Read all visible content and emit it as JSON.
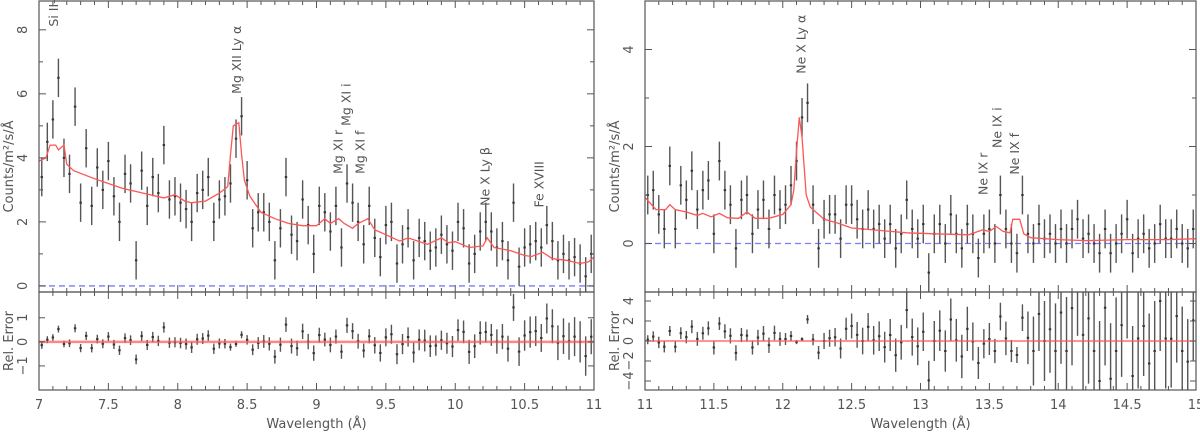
{
  "chart_data": [
    {
      "type": "line",
      "xlabel": "Wavelength (Å)",
      "ylabel": "Counts/m²/s/Å",
      "residual_ylabel": "Rel. Error",
      "xlim": [
        7,
        11
      ],
      "ylim": [
        -0.19,
        8.9
      ],
      "residual_ylim": [
        -2,
        2.07
      ],
      "xticks": [
        7,
        7.5,
        8,
        8.5,
        9,
        9.5,
        10,
        10.5,
        11
      ],
      "xtick_labels": [
        "7",
        "7.5",
        "8",
        "8.5",
        "9",
        "9.5",
        "10",
        "10.5",
        "11"
      ],
      "yticks": [
        0,
        2,
        4,
        6,
        8
      ],
      "ytick_labels": [
        "0",
        "2",
        "4",
        "6",
        "8"
      ],
      "residual_yticks": [
        -1,
        0,
        1
      ],
      "residual_ytick_labels": [
        "−1",
        "0",
        "1"
      ],
      "zero_line_color": "#7b7bff",
      "model_color": "#ff5555",
      "data_color": "#555555",
      "annotations": [
        {
          "text": "Si II–VI",
          "x": 7.1,
          "y": 8.1
        },
        {
          "text": "Mg XII Ly α",
          "x": 8.42,
          "y": 6.0
        },
        {
          "text": "Mg XI r",
          "x": 9.15,
          "y": 3.5
        },
        {
          "text": "Mg XI i",
          "x": 9.21,
          "y": 5.0
        },
        {
          "text": "Mg XI f",
          "x": 9.31,
          "y": 3.5
        },
        {
          "text": "Ne X Ly β",
          "x": 10.21,
          "y": 2.5
        },
        {
          "text": "Fe XVIII",
          "x": 10.6,
          "y": 2.45
        }
      ],
      "model": {
        "x": [
          7.0,
          7.05,
          7.08,
          7.12,
          7.14,
          7.18,
          7.2,
          7.25,
          7.4,
          7.5,
          7.6,
          7.7,
          7.8,
          7.9,
          7.98,
          8.05,
          8.1,
          8.2,
          8.3,
          8.36,
          8.38,
          8.4,
          8.44,
          8.46,
          8.48,
          8.52,
          8.6,
          8.7,
          8.8,
          8.9,
          9.0,
          9.06,
          9.1,
          9.16,
          9.2,
          9.26,
          9.3,
          9.37,
          9.42,
          9.5,
          9.6,
          9.66,
          9.8,
          9.9,
          9.95,
          10.0,
          10.1,
          10.2,
          10.23,
          10.28,
          10.4,
          10.5,
          10.55,
          10.63,
          10.7,
          10.8,
          10.9,
          10.96,
          11.0
        ],
        "y": [
          3.9,
          4.0,
          4.4,
          4.4,
          4.25,
          4.4,
          3.8,
          3.6,
          3.35,
          3.2,
          3.05,
          2.95,
          2.85,
          2.75,
          2.85,
          2.65,
          2.6,
          2.65,
          2.9,
          3.1,
          4.1,
          5.0,
          5.1,
          4.1,
          3.3,
          2.8,
          2.3,
          2.1,
          1.95,
          1.88,
          1.88,
          2.1,
          1.95,
          2.1,
          1.95,
          1.8,
          1.95,
          2.1,
          1.75,
          1.6,
          1.4,
          1.5,
          1.3,
          1.5,
          1.35,
          1.38,
          1.2,
          1.25,
          1.5,
          1.2,
          1.1,
          0.95,
          0.92,
          1.05,
          0.85,
          0.8,
          0.7,
          0.75,
          0.9
        ]
      },
      "data": {
        "x_start": 7.0,
        "x_step": 0.04,
        "yerr": 0.6,
        "y": [
          3.4,
          4.5,
          5.2,
          6.5,
          4.0,
          3.5,
          5.6,
          2.6,
          4.3,
          2.5,
          3.7,
          3.0,
          3.9,
          2.8,
          2.0,
          3.5,
          3.2,
          0.8,
          3.6,
          2.5,
          3.4,
          2.9,
          4.4,
          2.7,
          2.8,
          2.6,
          2.4,
          2.0,
          2.9,
          3.0,
          3.4,
          2.0,
          2.7,
          2.8,
          3.2,
          4.6,
          5.3,
          3.3,
          1.8,
          2.3,
          2.3,
          2.0,
          0.8,
          1.8,
          3.4,
          1.6,
          1.4,
          2.7,
          1.9,
          1.0,
          2.5,
          2.3,
          1.7,
          2.5,
          1.2,
          3.2,
          2.6,
          2.0,
          1.3,
          2.5,
          1.5,
          0.9,
          1.9,
          2.0,
          0.7,
          1.3,
          1.8,
          0.8,
          1.5,
          1.4,
          1.1,
          1.2,
          1.6,
          1.3,
          1.1,
          2.0,
          1.8,
          0.7,
          1.0,
          1.7,
          2.0,
          1.7,
          1.2,
          1.4,
          0.8,
          2.6,
          0.6,
          1.2,
          1.3,
          1.4,
          1.2,
          1.9,
          1.4,
          0.8,
          1.0,
          0.8,
          0.9,
          0.7,
          0.3,
          1.0
        ]
      }
    },
    {
      "type": "line",
      "xlabel": "Wavelength (Å)",
      "ylabel": "Counts/m²/s/Å",
      "residual_ylabel": "Rel. Error",
      "xlim": [
        11,
        15
      ],
      "ylim": [
        -1,
        5
      ],
      "residual_ylim": [
        -4.9,
        4.9
      ],
      "xticks": [
        11,
        11.5,
        12,
        12.5,
        13,
        13.5,
        14,
        14.5,
        15
      ],
      "xtick_labels": [
        "11",
        "11.5",
        "12",
        "12.5",
        "13",
        "13.5",
        "14",
        "14.5",
        "15"
      ],
      "yticks": [
        0,
        2,
        4
      ],
      "ytick_labels": [
        "0",
        "2",
        "4"
      ],
      "residual_yticks": [
        -4,
        -2,
        0,
        2,
        4
      ],
      "residual_ytick_labels": [
        "−4",
        "−2",
        "0",
        "2",
        "4"
      ],
      "zero_line_color": "#7b7bff",
      "model_color": "#ff5555",
      "data_color": "#555555",
      "annotations": [
        {
          "text": "Ne X Ly α",
          "x": 12.13,
          "y": 3.5
        },
        {
          "text": "Ne IX r",
          "x": 13.45,
          "y": 1.0
        },
        {
          "text": "Ne IX i",
          "x": 13.55,
          "y": 1.97
        },
        {
          "text": "Ne IX f",
          "x": 13.68,
          "y": 1.42
        }
      ],
      "model": {
        "x": [
          11.0,
          11.08,
          11.15,
          11.18,
          11.22,
          11.3,
          11.38,
          11.42,
          11.48,
          11.54,
          11.6,
          11.68,
          11.74,
          11.8,
          11.9,
          12.0,
          12.06,
          12.08,
          12.1,
          12.12,
          12.14,
          12.17,
          12.2,
          12.3,
          12.4,
          12.5,
          12.7,
          12.9,
          13.1,
          13.35,
          13.45,
          13.5,
          13.55,
          13.6,
          13.65,
          13.67,
          13.72,
          13.75,
          13.8,
          14.0,
          14.2,
          14.5,
          14.8,
          15.0
        ],
        "y": [
          0.95,
          0.7,
          0.7,
          0.8,
          0.7,
          0.65,
          0.58,
          0.62,
          0.55,
          0.62,
          0.53,
          0.52,
          0.65,
          0.52,
          0.52,
          0.6,
          0.8,
          1.1,
          1.9,
          2.6,
          2.2,
          1.0,
          0.75,
          0.5,
          0.42,
          0.32,
          0.27,
          0.22,
          0.2,
          0.18,
          0.28,
          0.25,
          0.35,
          0.25,
          0.22,
          0.5,
          0.5,
          0.2,
          0.12,
          0.08,
          0.06,
          0.08,
          0.08,
          0.1
        ]
      },
      "data": {
        "x_start": 11.0,
        "x_step": 0.04,
        "yerr": 0.4,
        "y": [
          1.0,
          1.1,
          0.6,
          0.3,
          1.6,
          0.3,
          1.2,
          0.9,
          1.5,
          0.7,
          1.1,
          1.3,
          0.2,
          1.7,
          1.1,
          0.8,
          -0.1,
          0.9,
          1.0,
          0.2,
          0.7,
          0.9,
          0.3,
          1.0,
          0.7,
          0.8,
          1.2,
          1.7,
          2.6,
          2.9,
          0.8,
          -0.1,
          0.5,
          0.6,
          0.6,
          0.1,
          0.8,
          0.8,
          0.5,
          0.3,
          0.7,
          0.3,
          0.4,
          0.1,
          0.4,
          -0.1,
          0.2,
          0.9,
          0.3,
          0.1,
          0.4,
          -0.6,
          0.2,
          0.4,
          0.0,
          0.6,
          0.2,
          -0.1,
          0.4,
          0.2,
          -0.3,
          0.2,
          0.3,
          0.0,
          1.0,
          0.3,
          0.0,
          -0.2,
          1.0,
          0.2,
          0.0,
          0.4,
          0.1,
          0.2,
          0.0,
          0.3,
          0.0,
          0.3,
          0.5,
          0.1,
          0.2,
          0.0,
          -0.2,
          0.3,
          -0.2,
          0.0,
          0.2,
          0.5,
          -0.2,
          0.1,
          0.2,
          -0.1,
          0.0,
          0.4,
          0.1,
          0.1,
          0.3,
          0.0,
          -0.1,
          0.3
        ]
      }
    }
  ]
}
